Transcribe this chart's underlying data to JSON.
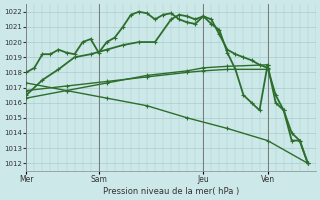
{
  "title": "Pression niveau de la mer( hPa )",
  "bg_color": "#cde8e8",
  "grid_color": "#aacccc",
  "line_color": "#2d6e2d",
  "ylim": [
    1011.5,
    1022.5
  ],
  "yticks": [
    1012,
    1013,
    1014,
    1015,
    1016,
    1017,
    1018,
    1019,
    1020,
    1021,
    1022
  ],
  "day_labels": [
    "Mer",
    "Sam",
    "Jeu",
    "Ven"
  ],
  "day_positions": [
    0,
    9,
    22,
    30
  ],
  "vline_positions": [
    0,
    9,
    22,
    30
  ],
  "xlim": [
    0,
    36
  ],
  "series": [
    {
      "x": [
        0,
        1,
        2,
        3,
        4,
        5,
        6,
        7,
        8,
        9,
        10,
        11,
        12,
        13,
        14,
        15,
        16,
        17,
        18,
        19,
        20,
        21,
        22,
        23,
        24,
        25,
        26,
        27,
        28,
        29,
        30,
        31,
        32,
        33,
        34,
        35
      ],
      "y": [
        1018.0,
        1018.3,
        1019.2,
        1019.2,
        1019.5,
        1019.3,
        1019.2,
        1020.0,
        1020.2,
        1019.3,
        1020.0,
        1020.3,
        1021.0,
        1021.8,
        1022.0,
        1021.9,
        1021.5,
        1021.8,
        1021.9,
        1021.5,
        1021.3,
        1021.2,
        1021.7,
        1021.5,
        1020.5,
        1019.5,
        1019.2,
        1019.0,
        1018.8,
        1018.5,
        1018.3,
        1016.5,
        1015.5,
        1014.0,
        1013.5,
        1012.0
      ],
      "lw": 1.3
    },
    {
      "x": [
        0,
        2,
        4,
        6,
        8,
        10,
        12,
        14,
        16,
        18,
        19,
        20,
        21,
        22,
        23,
        24,
        25,
        26,
        27,
        28,
        29,
        30,
        31,
        32,
        33,
        34,
        35
      ],
      "y": [
        1016.5,
        1017.5,
        1018.2,
        1019.0,
        1019.2,
        1019.5,
        1019.8,
        1020.0,
        1020.0,
        1021.5,
        1021.8,
        1021.7,
        1021.5,
        1021.7,
        1021.2,
        1020.8,
        1019.3,
        1018.2,
        1016.5,
        1016.0,
        1015.5,
        1018.5,
        1016.0,
        1015.5,
        1013.5,
        1013.5,
        1012.0
      ],
      "lw": 1.3
    },
    {
      "x": [
        0,
        5,
        10,
        15,
        20,
        22,
        25,
        30
      ],
      "y": [
        1016.3,
        1016.8,
        1017.3,
        1017.8,
        1018.1,
        1018.3,
        1018.4,
        1018.5
      ],
      "lw": 1.0
    },
    {
      "x": [
        0,
        5,
        10,
        15,
        20,
        22,
        25,
        30
      ],
      "y": [
        1016.8,
        1017.1,
        1017.4,
        1017.7,
        1018.0,
        1018.1,
        1018.2,
        1018.2
      ],
      "lw": 1.0
    },
    {
      "x": [
        0,
        5,
        10,
        15,
        20,
        25,
        30,
        35
      ],
      "y": [
        1017.3,
        1016.8,
        1016.3,
        1015.8,
        1015.0,
        1014.3,
        1013.5,
        1012.0
      ],
      "lw": 1.0
    }
  ]
}
